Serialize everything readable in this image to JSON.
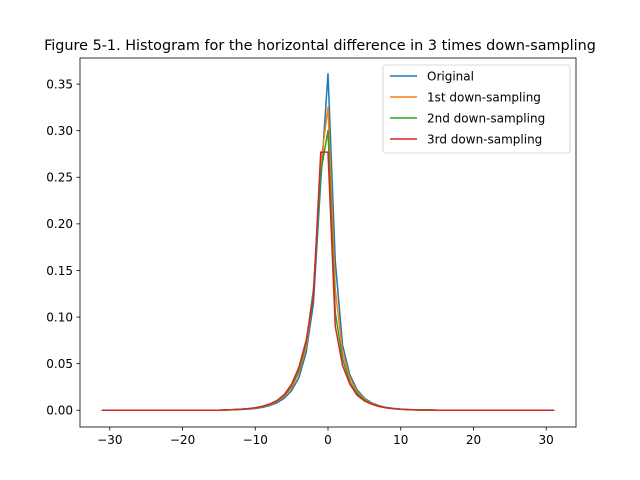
{
  "chart_data": {
    "type": "line",
    "title": "Figure 5-1. Histogram for the horizontal difference in 3 times down-sampling",
    "xlabel": "",
    "ylabel": "",
    "xlim": [
      -34.1,
      34.1
    ],
    "ylim": [
      -0.018,
      0.378
    ],
    "xticks": [
      -30,
      -20,
      -10,
      0,
      10,
      20,
      30
    ],
    "yticks": [
      0.0,
      0.05,
      0.1,
      0.15,
      0.2,
      0.25,
      0.3,
      0.35
    ],
    "xtick_labels": [
      "−30",
      "−20",
      "−10",
      "0",
      "10",
      "20",
      "30"
    ],
    "ytick_labels": [
      "0.00",
      "0.05",
      "0.10",
      "0.15",
      "0.20",
      "0.25",
      "0.30",
      "0.35"
    ],
    "grid": false,
    "legend_position": "top-right",
    "x": [
      -31,
      -30,
      -29,
      -28,
      -27,
      -26,
      -25,
      -24,
      -23,
      -22,
      -21,
      -20,
      -19,
      -18,
      -17,
      -16,
      -15,
      -14,
      -13,
      -12,
      -11,
      -10,
      -9,
      -8,
      -7,
      -6,
      -5,
      -4,
      -3,
      -2,
      -1,
      0,
      1,
      2,
      3,
      4,
      5,
      6,
      7,
      8,
      9,
      10,
      11,
      12,
      13,
      14,
      15,
      16,
      17,
      18,
      19,
      20,
      21,
      22,
      23,
      24,
      25,
      26,
      27,
      28,
      29,
      30,
      31
    ],
    "series": [
      {
        "name": "Original",
        "color": "#1f77b4",
        "values": [
          0,
          0,
          0,
          0,
          0,
          0,
          0,
          0,
          0,
          0,
          0,
          0,
          0,
          0,
          0,
          0,
          0,
          0.0003,
          0.0005,
          0.0008,
          0.0012,
          0.0018,
          0.003,
          0.005,
          0.008,
          0.013,
          0.021,
          0.035,
          0.062,
          0.115,
          0.245,
          0.361,
          0.16,
          0.07,
          0.038,
          0.022,
          0.013,
          0.008,
          0.005,
          0.003,
          0.002,
          0.0012,
          0.0008,
          0.0005,
          0.0003,
          0.0002,
          0,
          0,
          0,
          0,
          0,
          0,
          0,
          0,
          0,
          0,
          0,
          0,
          0,
          0,
          0,
          0,
          0
        ]
      },
      {
        "name": "1st down-sampling",
        "color": "#ff7f0e",
        "values": [
          0,
          0,
          0,
          0,
          0,
          0,
          0,
          0,
          0,
          0,
          0,
          0,
          0,
          0,
          0,
          0,
          0,
          0.0003,
          0.0006,
          0.001,
          0.0015,
          0.0023,
          0.0038,
          0.006,
          0.0095,
          0.015,
          0.024,
          0.04,
          0.068,
          0.125,
          0.265,
          0.325,
          0.13,
          0.062,
          0.034,
          0.02,
          0.012,
          0.0075,
          0.0045,
          0.0028,
          0.0018,
          0.0011,
          0.0007,
          0.0004,
          0.0003,
          0.0002,
          0,
          0,
          0,
          0,
          0,
          0,
          0,
          0,
          0,
          0,
          0,
          0,
          0,
          0,
          0,
          0,
          0
        ]
      },
      {
        "name": "2nd down-sampling",
        "color": "#2ca02c",
        "values": [
          0,
          0,
          0,
          0,
          0,
          0,
          0,
          0,
          0,
          0,
          0,
          0,
          0,
          0,
          0,
          0,
          0,
          0.0003,
          0.0006,
          0.001,
          0.0016,
          0.0025,
          0.004,
          0.0065,
          0.01,
          0.016,
          0.026,
          0.043,
          0.072,
          0.13,
          0.255,
          0.3,
          0.105,
          0.055,
          0.03,
          0.018,
          0.011,
          0.007,
          0.0042,
          0.0026,
          0.0017,
          0.001,
          0.0006,
          0.0004,
          0.0003,
          0.0002,
          0,
          0,
          0,
          0,
          0,
          0,
          0,
          0,
          0,
          0,
          0,
          0,
          0,
          0,
          0,
          0,
          0
        ]
      },
      {
        "name": "3rd down-sampling",
        "color": "#d62728",
        "values": [
          0,
          0,
          0,
          0,
          0,
          0,
          0,
          0,
          0,
          0,
          0,
          0,
          0,
          0,
          0,
          0,
          0,
          0.0004,
          0.0007,
          0.0011,
          0.0017,
          0.0027,
          0.0043,
          0.0068,
          0.0105,
          0.017,
          0.028,
          0.046,
          0.075,
          0.122,
          0.277,
          0.277,
          0.09,
          0.048,
          0.028,
          0.016,
          0.01,
          0.0065,
          0.004,
          0.0025,
          0.0016,
          0.001,
          0.0006,
          0.0004,
          0.0003,
          0.0002,
          0,
          0,
          0,
          0,
          0,
          0,
          0,
          0,
          0,
          0,
          0,
          0,
          0,
          0,
          0,
          0,
          0
        ]
      }
    ]
  }
}
